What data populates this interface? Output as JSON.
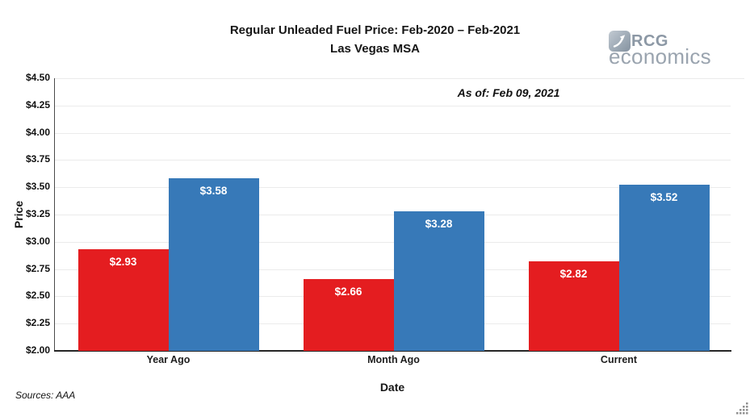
{
  "header": {
    "title_line1": "Regular Unleaded Fuel Price: Feb-2020 – Feb-2021",
    "title_line2": "Las Vegas MSA",
    "as_of": "As of: Feb 09, 2021",
    "logo": {
      "brand": "RCG",
      "brand_sub": "economics",
      "icon": "arrow-up-right-icon",
      "brand_color": "#8c98a5",
      "sub_color": "#9aa4af"
    }
  },
  "chart_data": {
    "type": "bar",
    "categories": [
      "Year Ago",
      "Month Ago",
      "Current"
    ],
    "series": [
      {
        "name": "series-red",
        "color": "#e41d20",
        "values": [
          2.93,
          2.66,
          2.82
        ],
        "labels": [
          "$2.93",
          "$2.66",
          "$2.82"
        ]
      },
      {
        "name": "series-blue",
        "color": "#3779b8",
        "values": [
          3.58,
          3.28,
          3.52
        ],
        "labels": [
          "$3.58",
          "$3.28",
          "$3.52"
        ]
      }
    ],
    "xlabel": "Date",
    "ylabel": "Price",
    "ylim": [
      2.0,
      4.5
    ],
    "ytick_step": 0.25,
    "ytick_labels": [
      "$2.00",
      "$2.25",
      "$2.50",
      "$2.75",
      "$3.00",
      "$3.25",
      "$3.50",
      "$3.75",
      "$4.00",
      "$4.25",
      "$4.50"
    ],
    "grid": true,
    "legend": "none",
    "gridline_color": "#ebebeb",
    "bar_label_color": "#ffffff"
  },
  "footer": {
    "sources": "Sources: AAA"
  },
  "window": {
    "resize_grip": "resize-grip-icon"
  }
}
